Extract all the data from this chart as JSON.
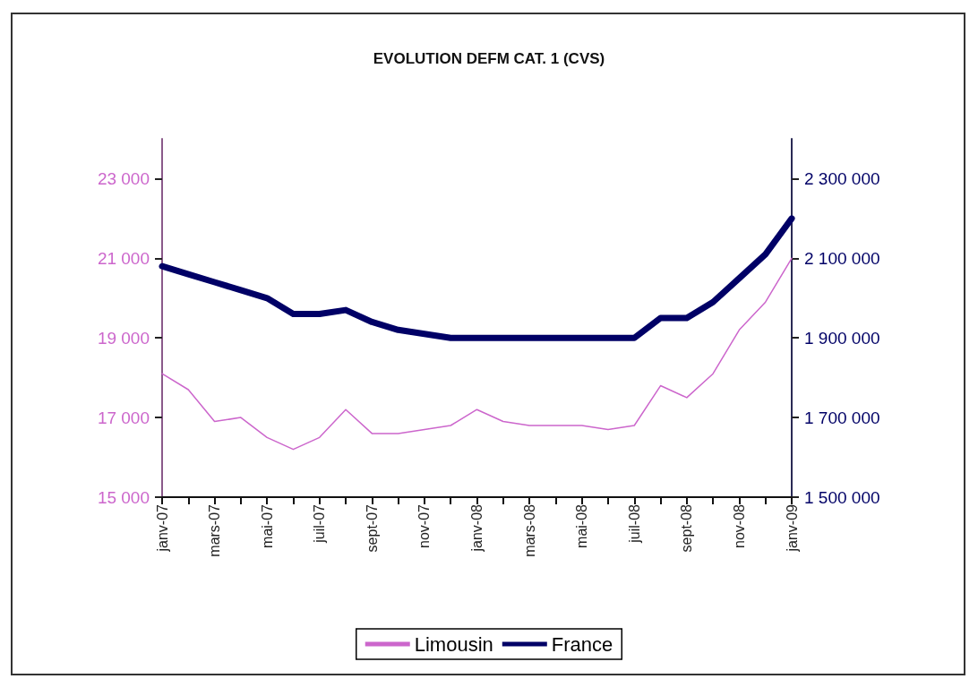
{
  "chart_data": {
    "type": "line",
    "title": "EVOLUTION DEFM CAT. 1 (CVS)",
    "categories": [
      "janv-07",
      null,
      "mars-07",
      null,
      "mai-07",
      null,
      "juil-07",
      null,
      "sept-07",
      null,
      "nov-07",
      null,
      "janv-08",
      null,
      "mars-08",
      null,
      "mai-08",
      null,
      "juil-08",
      null,
      "sept-08",
      null,
      "nov-08",
      null,
      "janv-09"
    ],
    "series": [
      {
        "name": "Limousin",
        "color": "#cc66cc",
        "values": [
          18100,
          17700,
          16900,
          17000,
          16500,
          16200,
          16500,
          17200,
          16600,
          16600,
          16700,
          16800,
          17200,
          16900,
          16800,
          16800,
          16800,
          16700,
          16800,
          17800,
          17500,
          18100,
          19200,
          19900,
          21000
        ]
      },
      {
        "name": "France",
        "color": "#000066",
        "axis": "y2",
        "values": [
          2080000,
          2060000,
          2040000,
          2020000,
          2000000,
          1960000,
          1960000,
          1970000,
          1940000,
          1920000,
          1910000,
          1900000,
          1900000,
          1900000,
          1900000,
          1900000,
          1900000,
          1900000,
          1900000,
          1950000,
          1950000,
          1990000,
          2050000,
          2110000,
          2200000
        ]
      }
    ],
    "ylim": [
      15000,
      24000
    ],
    "yticks": [
      {
        "value": 15000,
        "label": "15 000"
      },
      {
        "value": 17000,
        "label": "17 000"
      },
      {
        "value": 19000,
        "label": "19 000"
      },
      {
        "value": 21000,
        "label": "21 000"
      },
      {
        "value": 23000,
        "label": "23 000"
      }
    ],
    "y2lim": [
      1500000,
      2400000
    ],
    "y2ticks": [
      {
        "value": 1500000,
        "label": "1 500 000"
      },
      {
        "value": 1700000,
        "label": "1 700 000"
      },
      {
        "value": 1900000,
        "label": "1 900 000"
      },
      {
        "value": 2100000,
        "label": "2 100 000"
      },
      {
        "value": 2300000,
        "label": "2 300 000"
      }
    ],
    "grid": false,
    "legend": "bottom",
    "marker": "none",
    "line_style": "solid"
  }
}
